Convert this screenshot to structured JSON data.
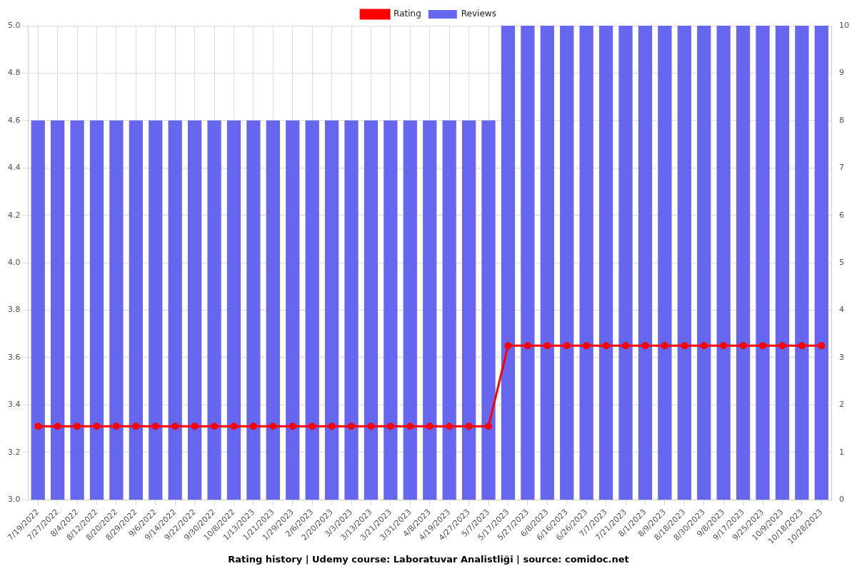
{
  "chart_data": {
    "type": "bar",
    "title": "Rating history | Udemy course: Laboratuvar Analistliği | source: comidoc.net",
    "categories": [
      "7/19/2022",
      "7/27/2022",
      "8/4/2022",
      "8/12/2022",
      "8/20/2022",
      "8/29/2022",
      "9/6/2022",
      "9/14/2022",
      "9/22/2022",
      "9/30/2022",
      "10/8/2022",
      "1/13/2023",
      "1/21/2023",
      "1/29/2023",
      "2/6/2023",
      "2/20/2023",
      "3/3/2023",
      "3/13/2023",
      "3/21/2023",
      "3/31/2023",
      "4/8/2023",
      "4/19/2023",
      "4/27/2023",
      "5/7/2023",
      "5/17/2023",
      "5/27/2023",
      "6/8/2023",
      "6/16/2023",
      "6/26/2023",
      "7/7/2023",
      "7/21/2023",
      "8/1/2023",
      "8/9/2023",
      "8/18/2023",
      "8/30/2023",
      "9/8/2023",
      "9/17/2023",
      "9/25/2023",
      "10/9/2023",
      "10/18/2023",
      "10/28/2023"
    ],
    "series": [
      {
        "name": "Rating",
        "type": "line",
        "color": "#ff0000",
        "marker": "circle",
        "axis": "y",
        "values": [
          3.31,
          3.31,
          3.31,
          3.31,
          3.31,
          3.31,
          3.31,
          3.31,
          3.31,
          3.31,
          3.31,
          3.31,
          3.31,
          3.31,
          3.31,
          3.31,
          3.31,
          3.31,
          3.31,
          3.31,
          3.31,
          3.31,
          3.31,
          3.31,
          3.65,
          3.65,
          3.65,
          3.65,
          3.65,
          3.65,
          3.65,
          3.65,
          3.65,
          3.65,
          3.65,
          3.65,
          3.65,
          3.65,
          3.65,
          3.65,
          3.65
        ]
      },
      {
        "name": "Reviews",
        "type": "bar",
        "color": "#6666ee",
        "axis": "y2",
        "values": [
          8,
          8,
          8,
          8,
          8,
          8,
          8,
          8,
          8,
          8,
          8,
          8,
          8,
          8,
          8,
          8,
          8,
          8,
          8,
          8,
          8,
          8,
          8,
          8,
          10,
          10,
          10,
          10,
          10,
          10,
          10,
          10,
          10,
          10,
          10,
          10,
          10,
          10,
          10,
          10,
          10
        ]
      }
    ],
    "ylim": [
      3,
      5
    ],
    "yticks": [
      {
        "value": 3,
        "label": "3.0"
      },
      {
        "value": 3.2,
        "label": "3.2"
      },
      {
        "value": 3.4,
        "label": "3.4"
      },
      {
        "value": 3.6,
        "label": "3.6"
      },
      {
        "value": 3.8,
        "label": "3.8"
      },
      {
        "value": 4,
        "label": "4.0"
      },
      {
        "value": 4.2,
        "label": "4.2"
      },
      {
        "value": 4.4,
        "label": "4.4"
      },
      {
        "value": 4.6,
        "label": "4.6"
      },
      {
        "value": 4.8,
        "label": "4.8"
      },
      {
        "value": 5,
        "label": "5.0"
      }
    ],
    "y2lim": [
      0,
      10
    ],
    "y2ticks": [
      0,
      1,
      2,
      3,
      4,
      5,
      6,
      7,
      8,
      9,
      10
    ],
    "grid": true,
    "legend": "top"
  }
}
